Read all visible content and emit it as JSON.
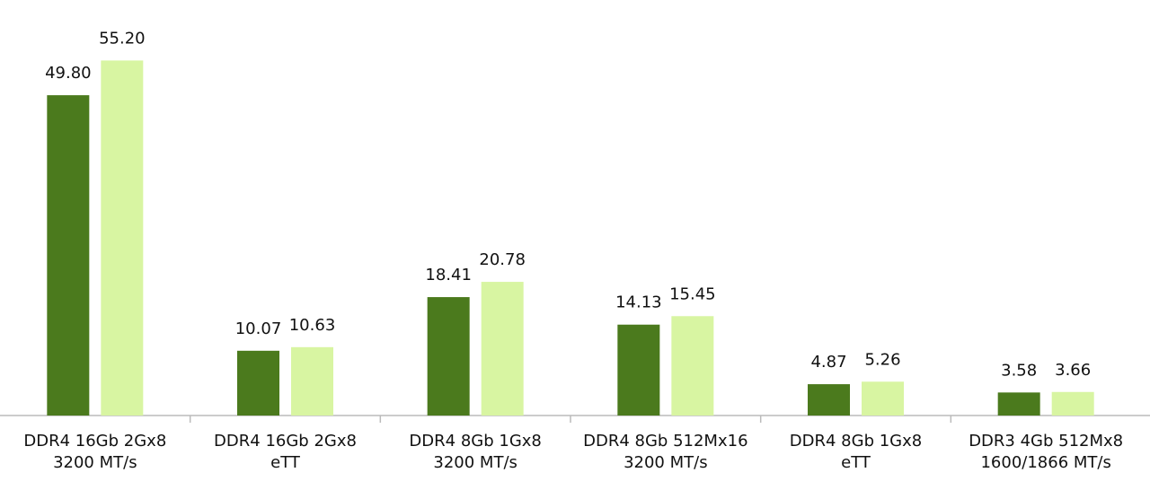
{
  "chart_data": {
    "type": "bar",
    "categories": [
      [
        "DDR4 16Gb 2Gx8",
        "3200 MT/s"
      ],
      [
        "DDR4 16Gb 2Gx8",
        "eTT"
      ],
      [
        "DDR4 8Gb 1Gx8",
        "3200 MT/s"
      ],
      [
        "DDR4 8Gb 512Mx16",
        "3200 MT/s"
      ],
      [
        "DDR4 8Gb 1Gx8",
        "eTT"
      ],
      [
        "DDR3 4Gb 512Mx8",
        "1600/1866 MT/s"
      ]
    ],
    "series": [
      {
        "color": "#4b7a1d",
        "values": [
          49.8,
          10.07,
          18.41,
          14.13,
          4.87,
          3.58
        ],
        "value_labels": [
          "49.80",
          "10.07",
          "18.41",
          "14.13",
          "4.87",
          "3.58"
        ]
      },
      {
        "color": "#d8f5a2",
        "values": [
          55.2,
          10.63,
          20.78,
          15.45,
          5.26,
          3.66
        ],
        "value_labels": [
          "55.20",
          "10.63",
          "20.78",
          "15.45",
          "5.26",
          "3.66"
        ]
      }
    ],
    "ylim": [
      0,
      60
    ]
  }
}
